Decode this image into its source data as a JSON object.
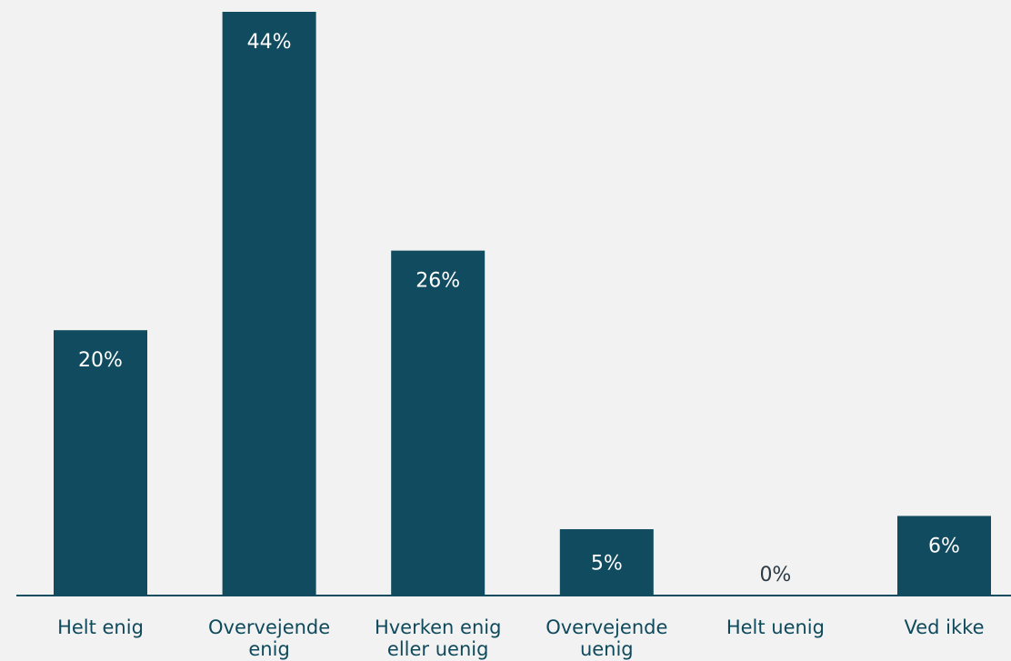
{
  "chart_data": {
    "type": "bar",
    "categories": [
      [
        "Helt enig"
      ],
      [
        "Overvejende",
        "enig"
      ],
      [
        "Hverken enig",
        "eller uenig"
      ],
      [
        "Overvejende",
        "uenig"
      ],
      [
        "Helt uenig"
      ],
      [
        "Ved ikke"
      ]
    ],
    "values": [
      20,
      44,
      26,
      5,
      0,
      6
    ],
    "value_labels": [
      "20%",
      "44%",
      "26%",
      "5%",
      "0%",
      "6%"
    ],
    "ylim": [
      0,
      44
    ],
    "grid": false,
    "legend": "none",
    "bar_color": "#114b5f",
    "axis_color": "#114b5f",
    "text_color": "#0f4a5c",
    "background": "#f2f2f2"
  }
}
